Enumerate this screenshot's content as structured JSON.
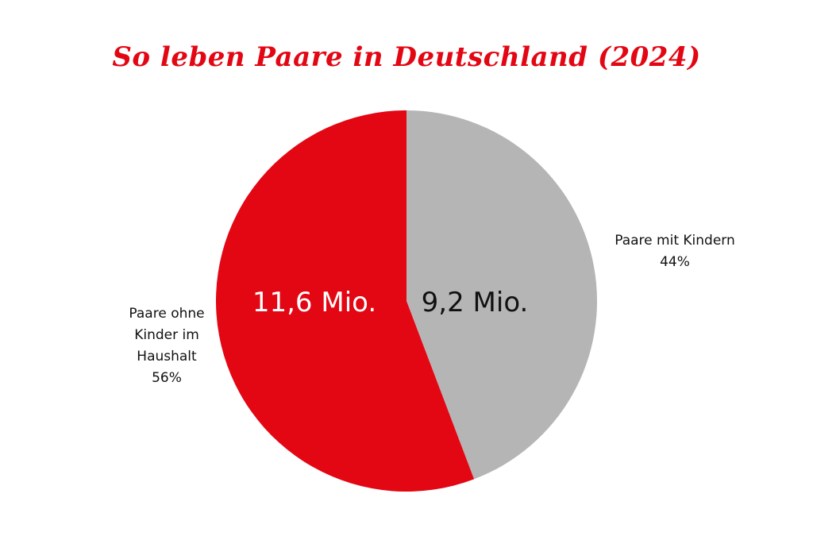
{
  "chart_data": {
    "type": "pie",
    "title": "So leben Paare in Deutschland (2024)",
    "slices": [
      {
        "name": "Paare mit Kindern",
        "percent_label": "44%",
        "value": 9.2,
        "value_label": "9,2 Mio.",
        "color": "#b5b5b5",
        "value_text_color": "#111111"
      },
      {
        "name": "Paare ohne Kinder im Haushalt",
        "name_lines": [
          "Paare ohne",
          "Kinder im",
          "Haushalt"
        ],
        "percent_label": "56%",
        "value": 11.6,
        "value_label": "11,6 Mio.",
        "color": "#e30613",
        "value_text_color": "#ffffff"
      }
    ],
    "start_angle": "12 o'clock",
    "direction": "clockwise",
    "legend": "none"
  }
}
